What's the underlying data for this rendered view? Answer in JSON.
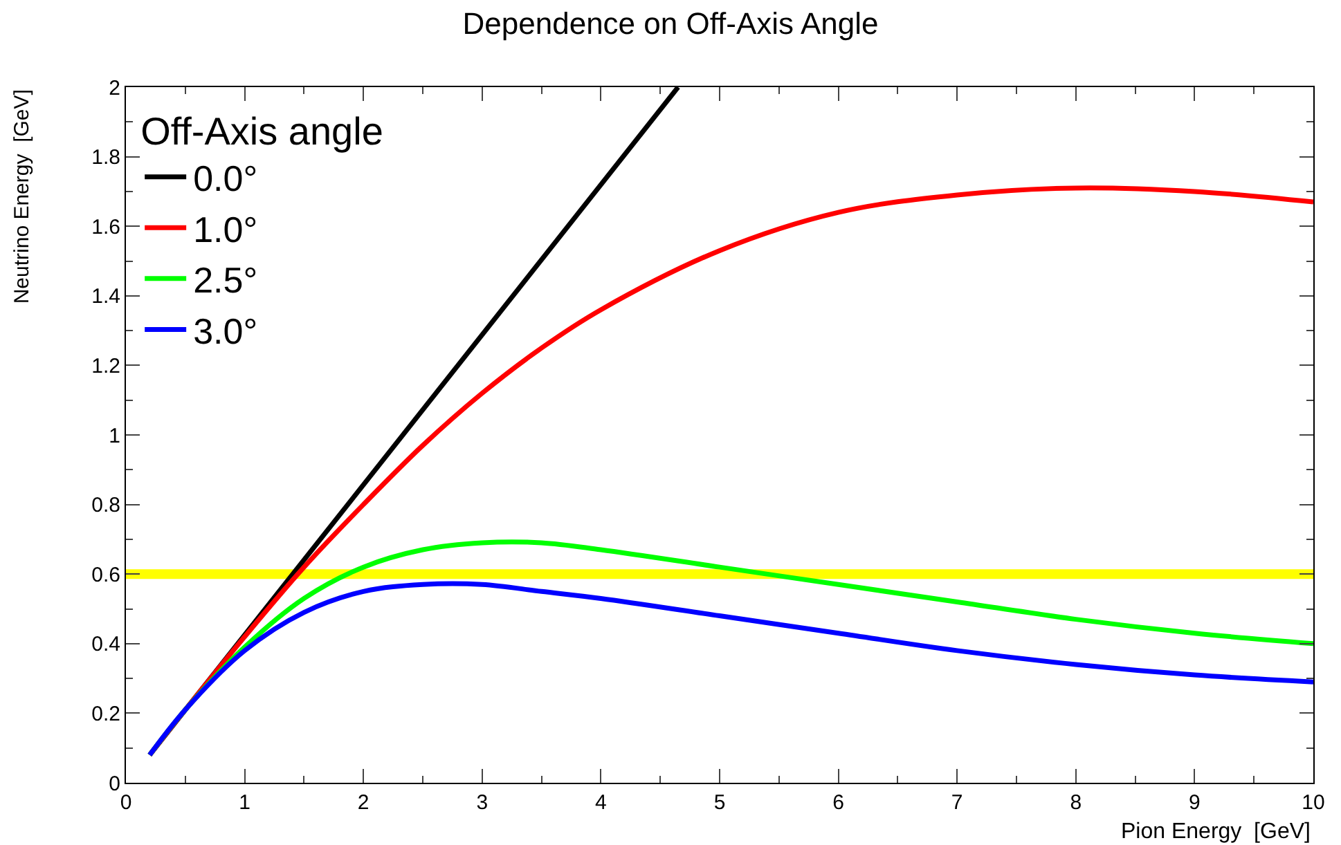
{
  "chart_data": {
    "type": "line",
    "title": "Dependence on Off-Axis Angle",
    "xlabel": "Pion Energy  [GeV]",
    "ylabel": "Neutrino Energy  [GeV]",
    "legend_title": "Off-Axis angle",
    "legend": "top left",
    "grid": false,
    "marker": "none",
    "line_style": "solid",
    "xlim": [
      0,
      10
    ],
    "ylim": [
      0,
      2
    ],
    "xticks": [
      0,
      1,
      2,
      3,
      4,
      5,
      6,
      7,
      8,
      9,
      10
    ],
    "yticks": [
      0,
      0.2,
      0.4,
      0.6,
      0.8,
      1,
      1.2,
      1.4,
      1.6,
      1.8,
      2
    ],
    "series": [
      {
        "name": "0.0°",
        "color": "#000000",
        "x": [
          0.2,
          4.65
        ],
        "values": [
          0.08,
          2.0
        ]
      },
      {
        "name": "1.0°",
        "color": "#ff0000",
        "x": [
          0.2,
          0.5,
          1,
          1.5,
          2,
          2.5,
          3,
          3.5,
          4,
          5,
          6,
          7,
          8,
          9,
          10
        ],
        "values": [
          0.08,
          0.21,
          0.42,
          0.62,
          0.8,
          0.97,
          1.12,
          1.25,
          1.36,
          1.53,
          1.64,
          1.69,
          1.71,
          1.7,
          1.67
        ]
      },
      {
        "name": "2.5°",
        "color": "#00ff00",
        "x": [
          0.2,
          0.5,
          1,
          1.5,
          2,
          2.5,
          3,
          3.5,
          4,
          5,
          6,
          7,
          8,
          9,
          10
        ],
        "values": [
          0.08,
          0.21,
          0.39,
          0.53,
          0.62,
          0.67,
          0.69,
          0.69,
          0.67,
          0.62,
          0.57,
          0.52,
          0.47,
          0.43,
          0.4
        ]
      },
      {
        "name": "3.0°",
        "color": "#0000ff",
        "x": [
          0.2,
          0.5,
          1,
          1.5,
          2,
          2.5,
          3,
          3.5,
          4,
          5,
          6,
          7,
          8,
          9,
          10
        ],
        "values": [
          0.08,
          0.21,
          0.38,
          0.49,
          0.55,
          0.57,
          0.57,
          0.55,
          0.53,
          0.48,
          0.43,
          0.38,
          0.34,
          0.31,
          0.29
        ]
      }
    ],
    "ref_lines": [
      {
        "axis": "y",
        "value": 0.6,
        "color": "#ffff00"
      }
    ]
  }
}
